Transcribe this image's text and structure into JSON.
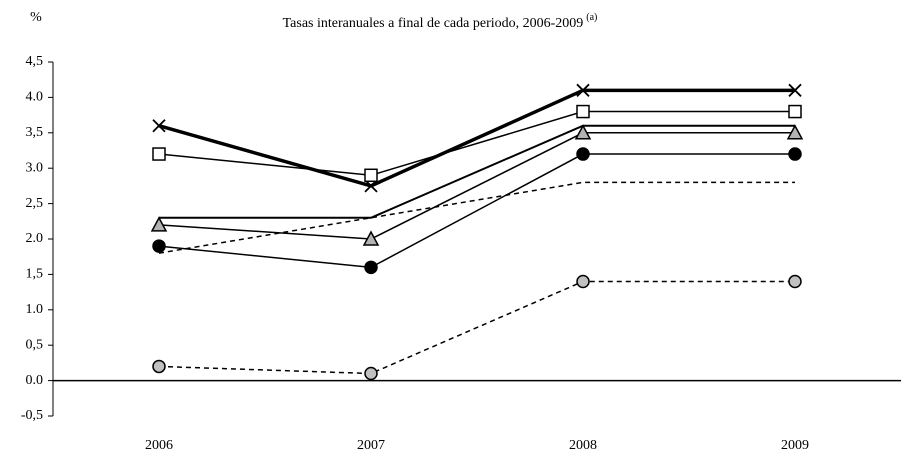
{
  "chart_data": {
    "type": "line",
    "title": "Tasas interanuales a final de cada periodo, 2006-2009",
    "title_note": "(a)",
    "y_label": "%",
    "categories": [
      "2006",
      "2007",
      "2008",
      "2009"
    ],
    "ylim": [
      -0.5,
      4.5
    ],
    "yticks": [
      {
        "value": -0.5,
        "label": "-0,5"
      },
      {
        "value": 0,
        "label": "0.0"
      },
      {
        "value": 0.5,
        "label": "0,5"
      },
      {
        "value": 1,
        "label": "1.0"
      },
      {
        "value": 1.5,
        "label": "1,5"
      },
      {
        "value": 2,
        "label": "2.0"
      },
      {
        "value": 2.5,
        "label": "2,5"
      },
      {
        "value": 3,
        "label": "3.0"
      },
      {
        "value": 3.5,
        "label": "3,5"
      },
      {
        "value": 4,
        "label": "4.0"
      },
      {
        "value": 4.5,
        "label": "4,5"
      }
    ],
    "series": [
      {
        "color": "#000000",
        "width": 3.5,
        "dash": false,
        "marker": "x",
        "marker_fill": "none",
        "values": [
          3.6,
          2.75,
          4.1,
          4.1
        ]
      },
      {
        "color": "#000000",
        "width": 1.5,
        "dash": false,
        "marker": "square",
        "marker_fill": "#ffffff",
        "values": [
          3.2,
          2.9,
          3.8,
          3.8
        ]
      },
      {
        "color": "#000000",
        "width": 2,
        "dash": false,
        "marker": "none",
        "marker_fill": "none",
        "values": [
          2.3,
          2.3,
          3.6,
          3.6
        ]
      },
      {
        "color": "#000000",
        "width": 1.5,
        "dash": false,
        "marker": "triangle",
        "marker_fill": "#b3b3b3",
        "values": [
          2.2,
          2.0,
          3.5,
          3.5
        ]
      },
      {
        "color": "#000000",
        "width": 1.5,
        "dash": false,
        "marker": "circle",
        "marker_fill": "#000000",
        "values": [
          1.9,
          1.6,
          3.2,
          3.2
        ]
      },
      {
        "color": "#000000",
        "width": 1.5,
        "dash": true,
        "marker": "none",
        "marker_fill": "none",
        "values": [
          1.8,
          2.3,
          2.8,
          2.8
        ]
      },
      {
        "color": "#000000",
        "width": 1.5,
        "dash": true,
        "marker": "circle",
        "marker_fill": "#c0c0c0",
        "values": [
          0.2,
          0.1,
          1.4,
          1.4
        ]
      }
    ]
  }
}
